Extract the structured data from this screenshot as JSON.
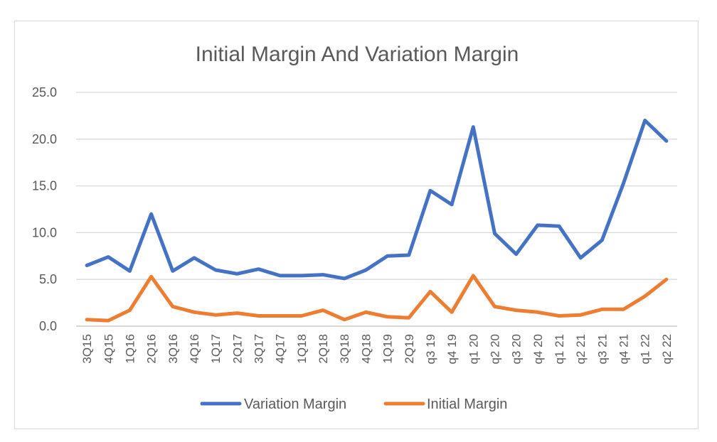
{
  "chart_data": {
    "type": "line",
    "title": "Initial Margin And Variation Margin",
    "categories": [
      "3Q15",
      "4Q15",
      "1Q16",
      "2Q16",
      "3Q16",
      "4Q16",
      "1Q17",
      "2Q17",
      "3Q17",
      "4Q17",
      "1Q18",
      "2Q18",
      "3Q18",
      "4Q18",
      "1Q19",
      "2Q19",
      "q3 19",
      "q4 19",
      "q1 20",
      "q2 20",
      "q3 20",
      "q4 20",
      "q1 21",
      "q2 21",
      "q3 21",
      "q4 21",
      "q1 22",
      "q2 22"
    ],
    "series": [
      {
        "name": "Variation Margin",
        "color": "#4472C4",
        "values": [
          6.5,
          7.4,
          5.9,
          12.0,
          5.9,
          7.3,
          6.0,
          5.6,
          6.1,
          5.4,
          5.4,
          5.5,
          5.1,
          6.0,
          7.5,
          7.6,
          14.5,
          13.0,
          21.3,
          9.9,
          7.7,
          10.8,
          10.7,
          7.3,
          9.2,
          15.3,
          22.0,
          19.8
        ]
      },
      {
        "name": "Initial Margin",
        "color": "#ED7D31",
        "values": [
          0.7,
          0.6,
          1.7,
          5.3,
          2.1,
          1.5,
          1.2,
          1.4,
          1.1,
          1.1,
          1.1,
          1.7,
          0.7,
          1.5,
          1.0,
          0.9,
          3.7,
          1.5,
          5.4,
          2.1,
          1.7,
          1.5,
          1.1,
          1.2,
          1.8,
          1.8,
          3.2,
          5.0
        ]
      }
    ],
    "y_ticks": [
      "0.0",
      "5.0",
      "10.0",
      "15.0",
      "20.0",
      "25.0"
    ],
    "ylim": [
      0,
      25
    ],
    "xlabel": "",
    "ylabel": "",
    "grid": true,
    "legend": "bottom"
  }
}
